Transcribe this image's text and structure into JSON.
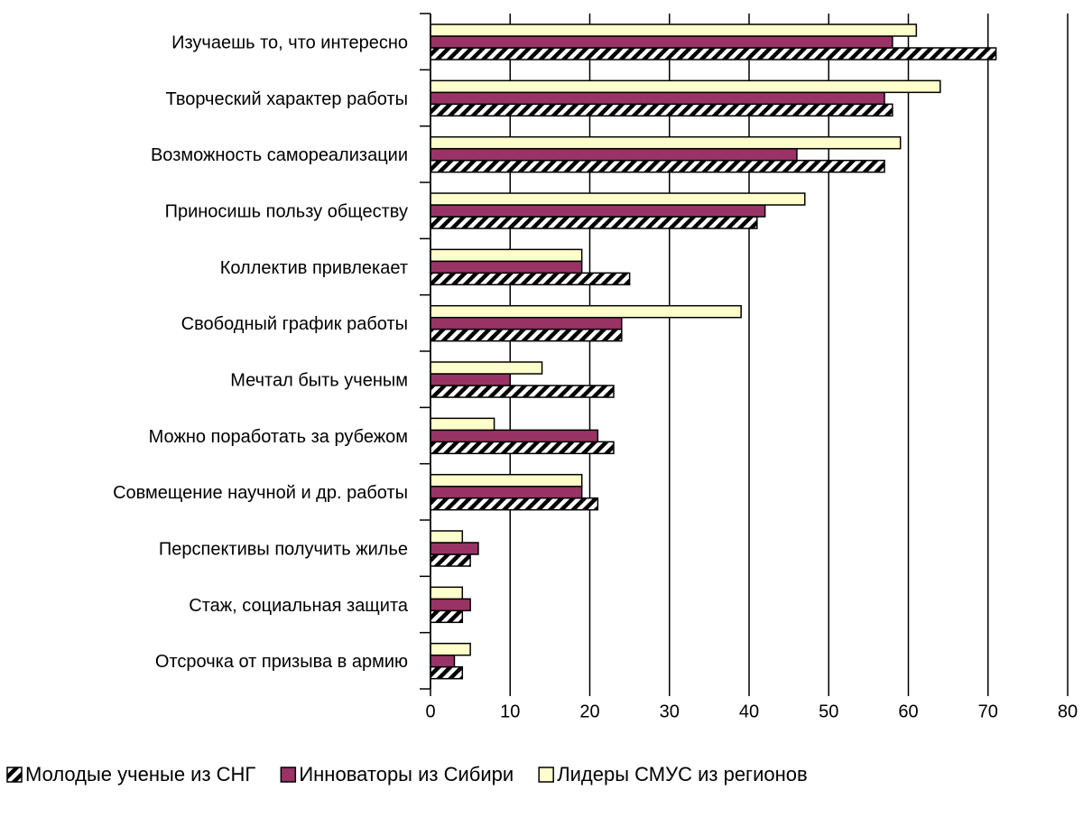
{
  "chart_data": {
    "type": "barh",
    "categories": [
      "Изучаешь то, что интересно",
      "Творческий характер работы",
      "Возможность самореализации",
      "Приносишь пользу обществу",
      "Коллектив привлекает",
      "Свободный график работы",
      "Мечтал быть ученым",
      "Можно поработать за рубежом",
      "Совмещение научной и др. работы",
      "Перспективы получить жилье",
      "Стаж, социальная защита",
      "Отсрочка от призыва в армию"
    ],
    "series": [
      {
        "name": "Молодые ученые из СНГ",
        "color": "#000000",
        "fill_pattern": "hatch",
        "values": [
          71,
          58,
          57,
          41,
          25,
          24,
          23,
          23,
          21,
          5,
          4,
          4
        ]
      },
      {
        "name": "Инноваторы из Сибири",
        "color": "#993366",
        "values": [
          58,
          57,
          46,
          42,
          19,
          24,
          10,
          21,
          19,
          6,
          5,
          3
        ]
      },
      {
        "name": "Лидеры СМУС из регионов",
        "color": "#ffffcc",
        "values": [
          61,
          64,
          59,
          47,
          19,
          39,
          14,
          8,
          19,
          4,
          4,
          5
        ]
      }
    ],
    "xlim": [
      0,
      80
    ],
    "xticks": [
      0,
      10,
      20,
      30,
      40,
      50,
      60,
      70,
      80
    ],
    "grid": true,
    "legend": "bottom"
  }
}
